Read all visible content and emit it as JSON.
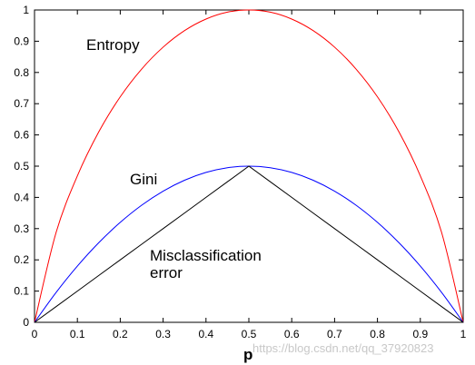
{
  "chart_data": {
    "type": "line",
    "xlabel": "p",
    "ylabel": "",
    "xlim": [
      0,
      1
    ],
    "ylim": [
      0,
      1
    ],
    "xticks": [
      "0",
      "0.1",
      "0.2",
      "0.3",
      "0.4",
      "0.5",
      "0.6",
      "0.7",
      "0.8",
      "0.9",
      "1"
    ],
    "yticks": [
      "0",
      "0.1",
      "0.2",
      "0.3",
      "0.4",
      "0.5",
      "0.6",
      "0.7",
      "0.8",
      "0.9",
      "1"
    ],
    "grid": false,
    "x": [
      0,
      0.05,
      0.1,
      0.15,
      0.2,
      0.25,
      0.3,
      0.35,
      0.4,
      0.45,
      0.5,
      0.55,
      0.6,
      0.65,
      0.7,
      0.75,
      0.8,
      0.85,
      0.9,
      0.95,
      1
    ],
    "series": [
      {
        "name": "Entropy",
        "color": "#ff0000",
        "values": [
          0,
          0.286,
          0.469,
          0.61,
          0.722,
          0.811,
          0.881,
          0.934,
          0.971,
          0.993,
          1,
          0.993,
          0.971,
          0.934,
          0.881,
          0.811,
          0.722,
          0.61,
          0.469,
          0.286,
          0
        ]
      },
      {
        "name": "Gini",
        "color": "#0000ff",
        "values": [
          0,
          0.095,
          0.18,
          0.255,
          0.32,
          0.375,
          0.42,
          0.455,
          0.48,
          0.495,
          0.5,
          0.495,
          0.48,
          0.455,
          0.42,
          0.375,
          0.32,
          0.255,
          0.18,
          0.095,
          0
        ]
      },
      {
        "name": "Misclassification error",
        "color": "#000000",
        "values": [
          0,
          0.05,
          0.1,
          0.15,
          0.2,
          0.25,
          0.3,
          0.35,
          0.4,
          0.45,
          0.5,
          0.45,
          0.4,
          0.35,
          0.3,
          0.25,
          0.2,
          0.15,
          0.1,
          0.05,
          0
        ]
      }
    ],
    "annotations": {
      "entropy": "Entropy",
      "gini": "Gini",
      "misclass_line1": "Misclassification",
      "misclass_line2": "error"
    }
  },
  "watermark": "https://blog.csdn.net/qq_37920823"
}
